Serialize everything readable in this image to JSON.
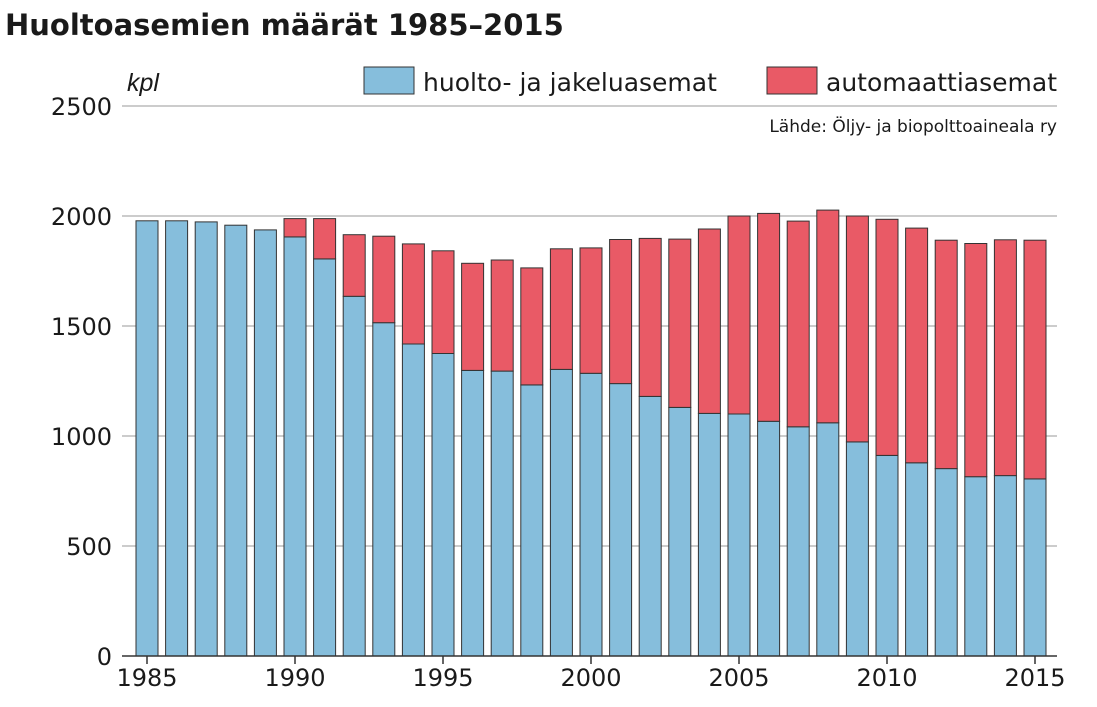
{
  "chart_data": {
    "type": "bar",
    "stacked": true,
    "title": "Huoltoasemien määrät 1985–2015",
    "unit_label": "kpl",
    "source": "Lähde: Öljy- ja biopolttoaineala ry",
    "legend_position": "top-right",
    "grid": true,
    "ylim": [
      0,
      2500
    ],
    "y_ticks": [
      "0",
      "500",
      "1000",
      "1500",
      "2000",
      "2500"
    ],
    "y_tick_values": [
      0,
      500,
      1000,
      1500,
      2000,
      2500
    ],
    "x_ticks": [
      "1985",
      "1990",
      "1995",
      "2000",
      "2005",
      "2010",
      "2015"
    ],
    "x_tick_values": [
      1985,
      1990,
      1995,
      2000,
      2005,
      2010,
      2015
    ],
    "x": [
      1985,
      1986,
      1987,
      1988,
      1989,
      1990,
      1991,
      1992,
      1993,
      1994,
      1995,
      1996,
      1997,
      1998,
      1999,
      2000,
      2001,
      2002,
      2003,
      2004,
      2005,
      2006,
      2007,
      2008,
      2009,
      2010,
      2011,
      2012,
      2013,
      2014,
      2015
    ],
    "series": [
      {
        "name": "huolto- ja jakeluasemat",
        "color": "#86bedc",
        "values": [
          1978,
          1978,
          1973,
          1958,
          1937,
          1905,
          1805,
          1635,
          1515,
          1418,
          1375,
          1298,
          1295,
          1232,
          1303,
          1285,
          1238,
          1180,
          1130,
          1103,
          1100,
          1067,
          1042,
          1060,
          973,
          912,
          878,
          852,
          815,
          820,
          805
        ]
      },
      {
        "name": "automaattiasemat",
        "color": "#e95a66",
        "values": [
          0,
          0,
          0,
          0,
          0,
          83,
          183,
          280,
          393,
          455,
          467,
          487,
          505,
          532,
          548,
          570,
          655,
          718,
          765,
          838,
          900,
          945,
          935,
          967,
          1027,
          1073,
          1067,
          1038,
          1060,
          1072,
          1085
        ]
      }
    ]
  }
}
